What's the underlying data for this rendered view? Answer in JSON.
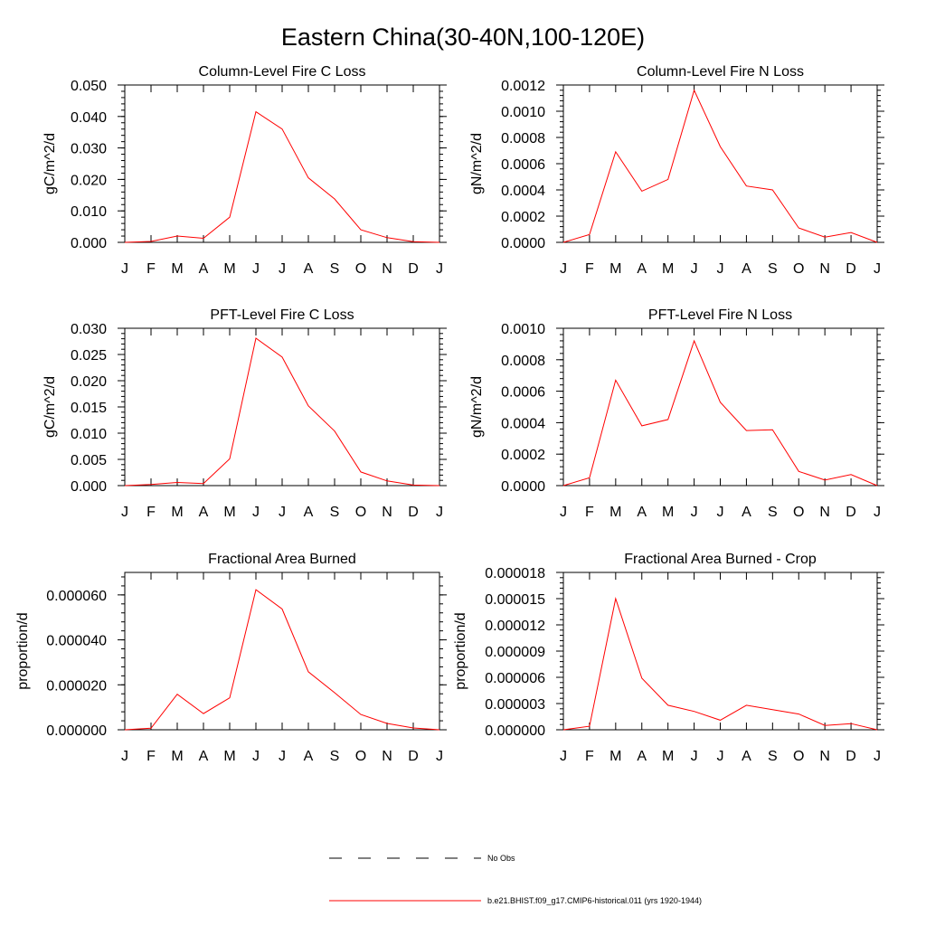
{
  "figure": {
    "title": "Eastern China(30-40N,100-120E)"
  },
  "legend": {
    "items": [
      {
        "label": "No Obs",
        "style": "dashed",
        "color": "#000000"
      },
      {
        "label": "b.e21.BHIST.f09_g17.CMIP6-historical.011 (yrs 1920-1944)",
        "style": "solid",
        "color": "#ff0000"
      }
    ]
  },
  "chart_data": [
    {
      "type": "line",
      "title": "Column-Level Fire C Loss",
      "ylabel": "gC/m^2/d",
      "categories": [
        "J",
        "F",
        "M",
        "A",
        "M",
        "J",
        "J",
        "A",
        "S",
        "O",
        "N",
        "D",
        "J"
      ],
      "ylim": [
        0,
        0.05
      ],
      "yticks": [
        "0.000",
        "0.010",
        "0.020",
        "0.030",
        "0.040",
        "0.050"
      ],
      "series": [
        {
          "color": "#ff0000",
          "values": [
            0.0,
            0.0003,
            0.002,
            0.0013,
            0.008,
            0.0415,
            0.036,
            0.0205,
            0.0138,
            0.004,
            0.0015,
            0.0002,
            0.0
          ]
        }
      ]
    },
    {
      "type": "line",
      "title": "Column-Level Fire N Loss",
      "ylabel": "gN/m^2/d",
      "categories": [
        "J",
        "F",
        "M",
        "A",
        "M",
        "J",
        "J",
        "A",
        "S",
        "O",
        "N",
        "D",
        "J"
      ],
      "ylim": [
        0,
        0.0012
      ],
      "yticks": [
        "0.0000",
        "0.0002",
        "0.0004",
        "0.0006",
        "0.0008",
        "0.0010",
        "0.0012"
      ],
      "series": [
        {
          "color": "#ff0000",
          "values": [
            0.0,
            6e-05,
            0.00069,
            0.00039,
            0.00048,
            0.00116,
            0.00073,
            0.00043,
            0.0004,
            0.00011,
            4e-05,
            7.5e-05,
            0.0
          ]
        }
      ]
    },
    {
      "type": "line",
      "title": "PFT-Level Fire C Loss",
      "ylabel": "gC/m^2/d",
      "categories": [
        "J",
        "F",
        "M",
        "A",
        "M",
        "J",
        "J",
        "A",
        "S",
        "O",
        "N",
        "D",
        "J"
      ],
      "ylim": [
        0,
        0.03
      ],
      "yticks": [
        "0.000",
        "0.005",
        "0.010",
        "0.015",
        "0.020",
        "0.025",
        "0.030"
      ],
      "series": [
        {
          "color": "#ff0000",
          "values": [
            0.0,
            0.0002,
            0.0006,
            0.0004,
            0.0051,
            0.0281,
            0.0245,
            0.0152,
            0.0104,
            0.0026,
            0.0009,
            0.0001,
            0.0
          ]
        }
      ]
    },
    {
      "type": "line",
      "title": "PFT-Level Fire N Loss",
      "ylabel": "gN/m^2/d",
      "categories": [
        "J",
        "F",
        "M",
        "A",
        "M",
        "J",
        "J",
        "A",
        "S",
        "O",
        "N",
        "D",
        "J"
      ],
      "ylim": [
        0,
        0.001
      ],
      "yticks": [
        "0.0000",
        "0.0002",
        "0.0004",
        "0.0006",
        "0.0008",
        "0.0010"
      ],
      "series": [
        {
          "color": "#ff0000",
          "values": [
            0.0,
            5e-05,
            0.00067,
            0.00038,
            0.00042,
            0.00092,
            0.00053,
            0.00035,
            0.000355,
            9e-05,
            3.5e-05,
            7e-05,
            0.0
          ]
        }
      ]
    },
    {
      "type": "line",
      "title": "Fractional Area Burned",
      "ylabel": "proportion/d",
      "categories": [
        "J",
        "F",
        "M",
        "A",
        "M",
        "J",
        "J",
        "A",
        "S",
        "O",
        "N",
        "D",
        "J"
      ],
      "ylim": [
        0,
        7e-05
      ],
      "yticks": [
        "0.000000",
        "0.000020",
        "0.000040",
        "0.000060"
      ],
      "yticks_at": [
        0,
        2e-05,
        4e-05,
        6e-05
      ],
      "series": [
        {
          "color": "#ff0000",
          "values": [
            0.0,
            7e-07,
            1.58e-05,
            7.2e-06,
            1.42e-05,
            6.23e-05,
            5.37e-05,
            2.58e-05,
            1.65e-05,
            6.8e-06,
            2.8e-06,
            8e-07,
            0.0
          ]
        }
      ]
    },
    {
      "type": "line",
      "title": "Fractional Area Burned - Crop",
      "ylabel": "proportion/d",
      "categories": [
        "J",
        "F",
        "M",
        "A",
        "M",
        "J",
        "J",
        "A",
        "S",
        "O",
        "N",
        "D",
        "J"
      ],
      "ylim": [
        0,
        1.8e-05
      ],
      "yticks": [
        "0.000000",
        "0.000003",
        "0.000006",
        "0.000009",
        "0.000012",
        "0.000015",
        "0.000018"
      ],
      "series": [
        {
          "color": "#ff0000",
          "values": [
            0.0,
            4e-07,
            1.5e-05,
            5.9e-06,
            2.8e-06,
            2.1e-06,
            1.1e-06,
            2.8e-06,
            2.3e-06,
            1.8e-06,
            5e-07,
            7e-07,
            0.0
          ]
        }
      ]
    }
  ]
}
